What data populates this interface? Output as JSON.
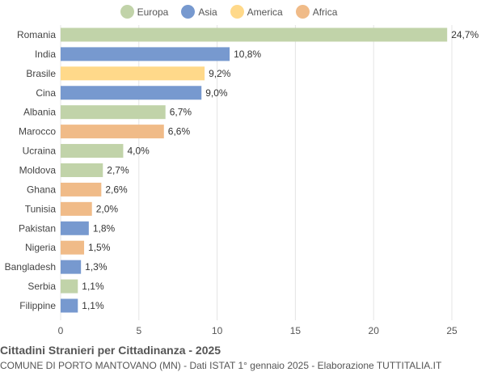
{
  "chart_data": {
    "type": "bar",
    "orientation": "horizontal",
    "title": "Cittadini Stranieri per Cittadinanza - 2025",
    "subtitle": "COMUNE DI PORTO MANTOVANO (MN) - Dati ISTAT 1° gennaio 2025 - Elaborazione TUTTITALIA.IT",
    "legend": [
      {
        "name": "Europa",
        "color": "#c1d3a9"
      },
      {
        "name": "Asia",
        "color": "#7799cf"
      },
      {
        "name": "America",
        "color": "#ffd98a"
      },
      {
        "name": "Africa",
        "color": "#f0bb88"
      }
    ],
    "legend_position": "top",
    "categories": [
      "Romania",
      "India",
      "Brasile",
      "Cina",
      "Albania",
      "Marocco",
      "Ucraina",
      "Moldova",
      "Ghana",
      "Tunisia",
      "Pakistan",
      "Nigeria",
      "Bangladesh",
      "Serbia",
      "Filippine"
    ],
    "values": [
      24.7,
      10.8,
      9.2,
      9.0,
      6.7,
      6.6,
      4.0,
      2.7,
      2.6,
      2.0,
      1.8,
      1.5,
      1.3,
      1.1,
      1.1
    ],
    "labels": [
      "24,7%",
      "10,8%",
      "9,2%",
      "9,0%",
      "6,7%",
      "6,6%",
      "4,0%",
      "2,7%",
      "2,6%",
      "2,0%",
      "1,8%",
      "1,5%",
      "1,3%",
      "1,1%",
      "1,1%"
    ],
    "groups": [
      "Europa",
      "Asia",
      "America",
      "Asia",
      "Europa",
      "Africa",
      "Europa",
      "Europa",
      "Africa",
      "Africa",
      "Asia",
      "Africa",
      "Asia",
      "Europa",
      "Asia"
    ],
    "xlim": [
      0,
      25
    ],
    "xticks": [
      "0",
      "5",
      "10",
      "15",
      "20",
      "25"
    ],
    "grid": true
  }
}
